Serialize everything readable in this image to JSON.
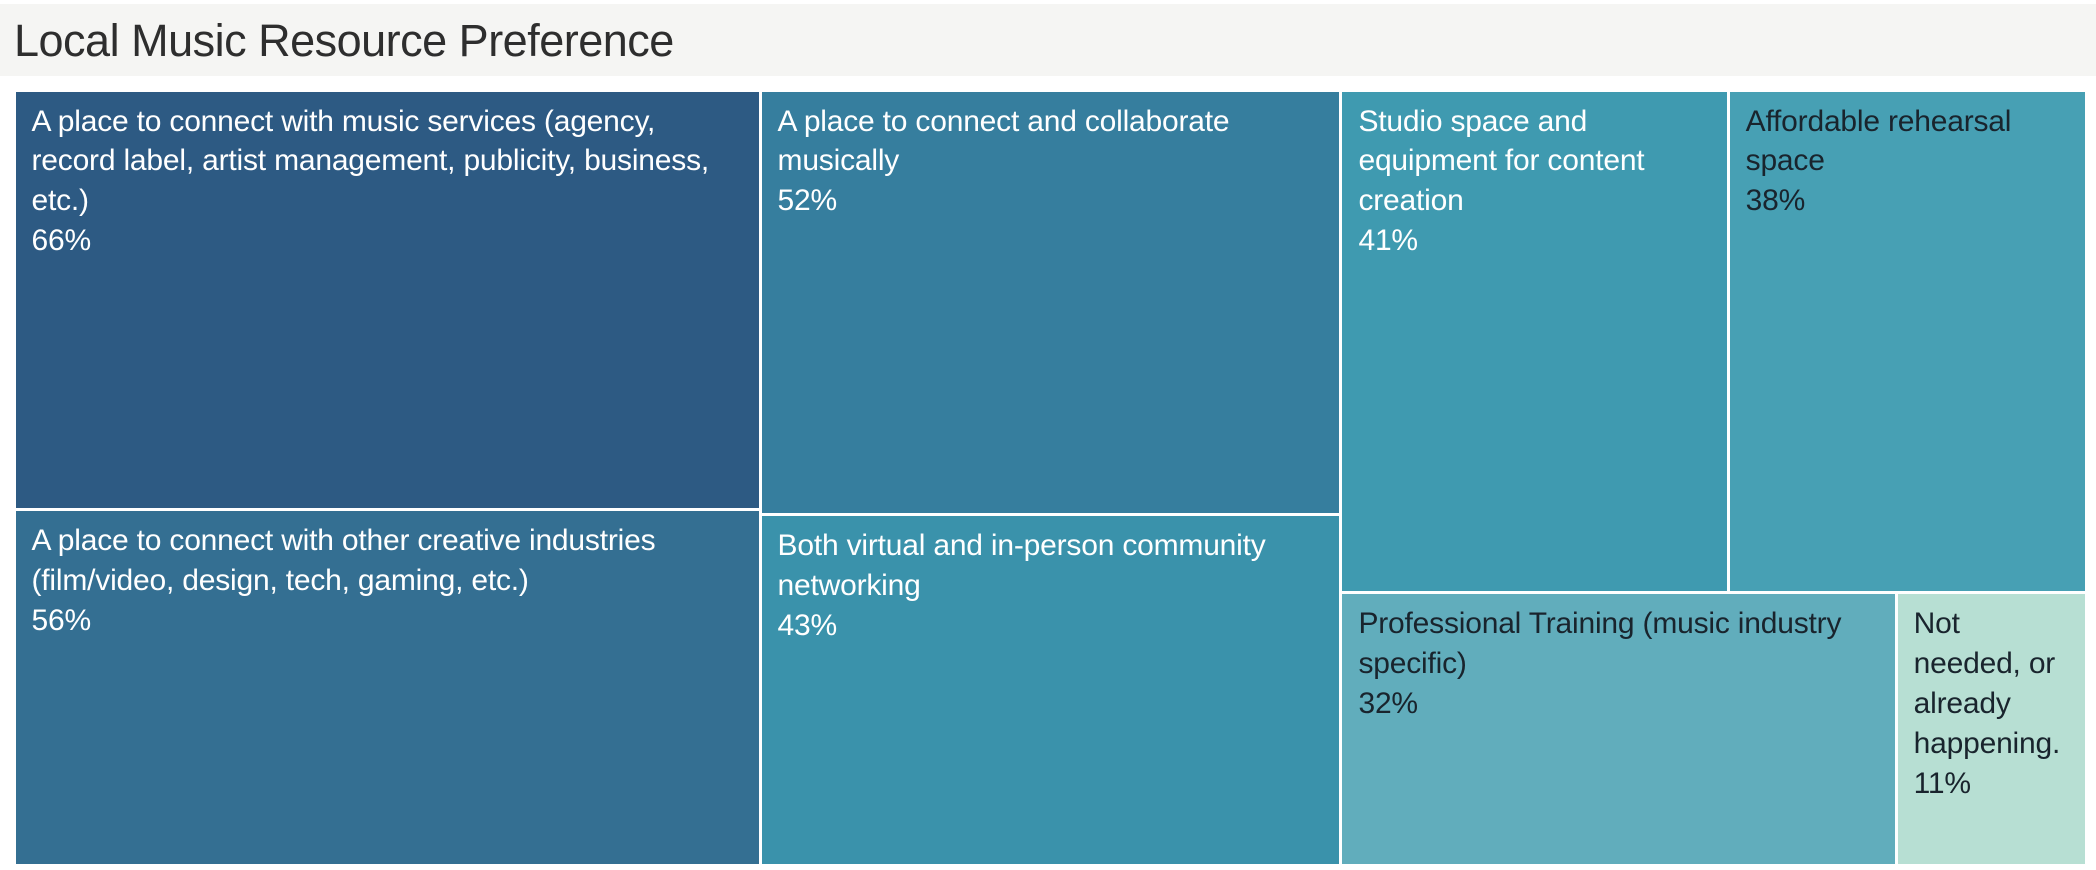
{
  "page": {
    "background": "#ffffff",
    "title_band_bg": "#f5f5f3",
    "title_color": "#2e2e2e"
  },
  "chart_data": {
    "type": "treemap",
    "title": "Local Music Resource Preference",
    "value_unit": "percent",
    "grid": false,
    "legend": "none",
    "border_color": "#ffffff",
    "items": [
      {
        "label": "A place to connect with music services (agency, record label, artist management, publicity, business, etc.)",
        "value": 66,
        "value_label": "66%",
        "color": "#2d5a83",
        "text_color": "#ffffff"
      },
      {
        "label": "A place to connect and collaborate musically",
        "value": 52,
        "value_label": "52%",
        "color": "#367e9e",
        "text_color": "#ffffff"
      },
      {
        "label": "Studio space and equipment for content creation",
        "value": 41,
        "value_label": "41%",
        "color": "#3f9ab0",
        "text_color": "#ffffff"
      },
      {
        "label": "Affordable rehearsal space",
        "value": 38,
        "value_label": "38%",
        "color": "#47a0b4",
        "text_color": "#19242d"
      },
      {
        "label": "A place to connect with other creative industries (film/video, design, tech, gaming, etc.)",
        "value": 56,
        "value_label": "56%",
        "color": "#346f92",
        "text_color": "#ffffff"
      },
      {
        "label": "Both virtual and in-person community networking",
        "value": 43,
        "value_label": "43%",
        "color": "#3a92ab",
        "text_color": "#ffffff"
      },
      {
        "label": "Professional Training (music industry specific)",
        "value": 32,
        "value_label": "32%",
        "color": "#61adbc",
        "text_color": "#19242d"
      },
      {
        "label": "Not needed, or already happening.",
        "value": 11,
        "value_label": "11%",
        "color": "#b7dfd3",
        "text_color": "#19242d"
      }
    ],
    "layout": {
      "dir": "row",
      "children": [
        {
          "dir": "col",
          "items": [
            0,
            4
          ]
        },
        {
          "dir": "col",
          "items": [
            1,
            5
          ]
        },
        {
          "dir": "col",
          "children": [
            {
              "dir": "row",
              "items": [
                2,
                3
              ]
            },
            {
              "dir": "row",
              "items": [
                6,
                7
              ]
            }
          ]
        }
      ]
    }
  }
}
